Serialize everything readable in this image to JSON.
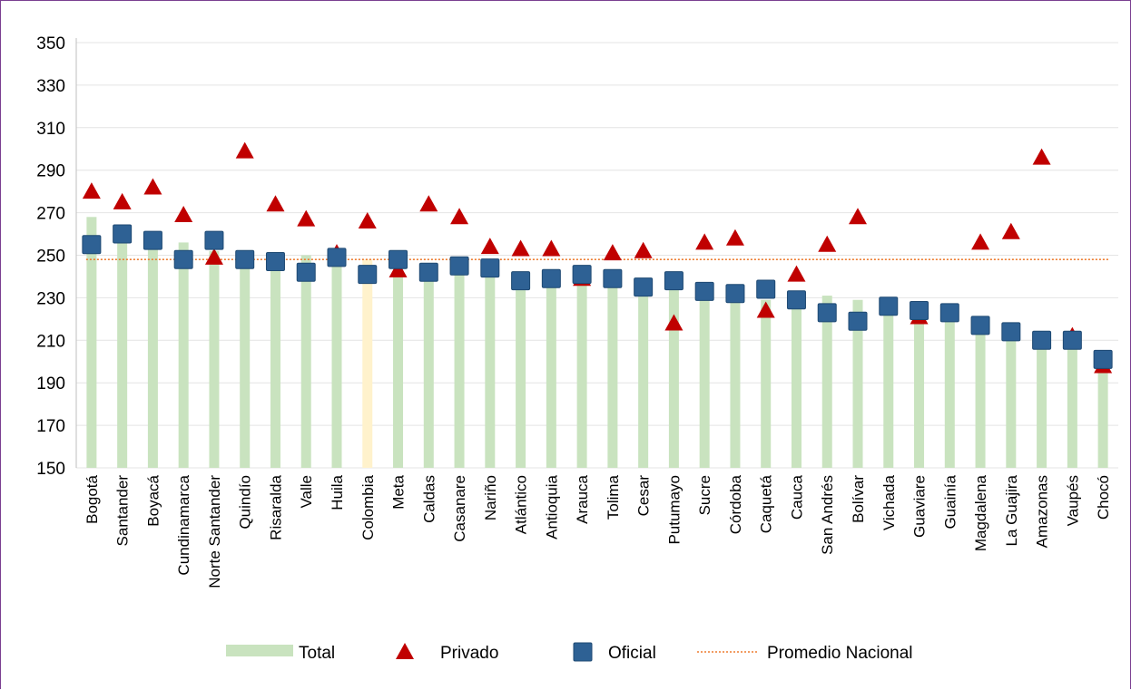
{
  "chart_data": {
    "type": "bar",
    "title": "",
    "xlabel": "",
    "ylabel": "",
    "ylim": [
      150,
      350
    ],
    "yticks": [
      150,
      170,
      190,
      210,
      230,
      250,
      270,
      290,
      310,
      330,
      350
    ],
    "grid": true,
    "legend_position": "bottom",
    "categories": [
      "Bogotá",
      "Santander",
      "Boyacá",
      "Cundinamarca",
      "Norte Santander",
      "Quindío",
      "Risaralda",
      "Valle",
      "Huila",
      "Colombia",
      "Meta",
      "Caldas",
      "Casanare",
      "Nariño",
      "Atlántico",
      "Antioquia",
      "Arauca",
      "Tolima",
      "Cesar",
      "Putumayo",
      "Sucre",
      "Córdoba",
      "Caquetá",
      "Cauca",
      "San Andrés",
      "Bolívar",
      "Vichada",
      "Guaviare",
      "Guainía",
      "Magdalena",
      "La Guajira",
      "Amazonas",
      "Vaupés",
      "Chocó"
    ],
    "highlight_category": "Colombia",
    "series": [
      {
        "name": "Total",
        "kind": "bar",
        "color": "#c9e3bf",
        "highlight_color": "#fff2cc",
        "values": [
          268,
          262,
          258,
          256,
          252,
          250,
          248,
          250,
          250,
          248,
          246,
          246,
          245,
          243,
          239,
          239,
          238,
          237,
          234,
          234,
          232,
          232,
          229,
          229,
          231,
          229,
          226,
          224,
          222,
          216,
          214,
          209,
          211,
          198
        ]
      },
      {
        "name": "Privado",
        "kind": "triangle",
        "color": "#c00000",
        "values": [
          280,
          275,
          282,
          269,
          249,
          299,
          274,
          267,
          251,
          266,
          243,
          274,
          268,
          254,
          253,
          253,
          239,
          251,
          252,
          218,
          256,
          258,
          224,
          241,
          255,
          268,
          null,
          221,
          null,
          256,
          261,
          296,
          212,
          198
        ]
      },
      {
        "name": "Oficial",
        "kind": "square",
        "color": "#2e6194",
        "values": [
          255,
          260,
          257,
          248,
          257,
          248,
          247,
          242,
          249,
          241,
          248,
          242,
          245,
          244,
          238,
          239,
          241,
          239,
          235,
          238,
          233,
          232,
          234,
          229,
          223,
          219,
          226,
          224,
          223,
          217,
          214,
          210,
          210,
          201
        ]
      },
      {
        "name": "Promedio Nacional",
        "kind": "dotted-line",
        "color": "#ed7d31",
        "value": 248
      }
    ]
  }
}
